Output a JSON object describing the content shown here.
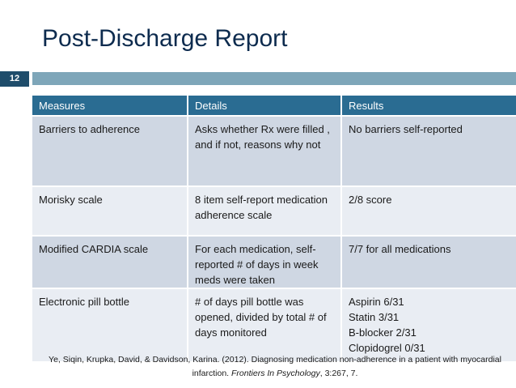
{
  "slide": {
    "title": "Post-Discharge Report",
    "number": "12"
  },
  "colors": {
    "title": "#0d2b4e",
    "header_fill": "#2a6c92",
    "rule_bar": "#7ea6b9",
    "number_badge": "#1f4d6b",
    "row_dark": "#cfd7e3",
    "row_light": "#e9edf3"
  },
  "table": {
    "headers": [
      "Measures",
      "Details",
      "Results"
    ],
    "rows": [
      {
        "measure": "Barriers to adherence",
        "details": "Asks whether Rx were filled , and if not, reasons why not",
        "results": [
          "No barriers self-reported"
        ]
      },
      {
        "measure": "Morisky scale",
        "details": "8 item self-report medication adherence scale",
        "results": [
          "2/8 score"
        ]
      },
      {
        "measure": "Modified CARDIA scale",
        "details": "For each medication, self-reported # of days in week meds were taken",
        "results": [
          "7/7 for all medications"
        ]
      },
      {
        "measure": "Electronic pill bottle",
        "details": "# of days pill bottle was opened, divided by total # of days monitored",
        "results": [
          "Aspirin 6/31",
          "Statin 3/31",
          "B-blocker 2/31",
          "Clopidogrel 0/31"
        ]
      }
    ]
  },
  "citation": {
    "authors": "Ye, Siqin, Krupka, David, & Davidson, Karina. (2012). Diagnosing medication non-adherence in a patient with myocardial infarction.",
    "journal": "Frontiers In Psychology",
    "tail": ", 3:267, 7."
  }
}
